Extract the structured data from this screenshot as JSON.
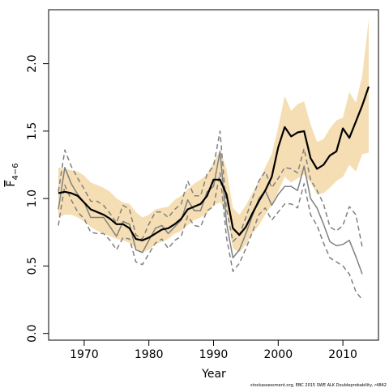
{
  "chart_data": {
    "type": "line",
    "xlabel": "Year",
    "ylabel_main": "F",
    "ylabel_subscript": "4−6",
    "xlim": [
      1964.5,
      2015.5
    ],
    "ylim": [
      -0.05,
      2.4
    ],
    "x_ticks": [
      1970,
      1980,
      1990,
      2000,
      2010
    ],
    "y_ticks": [
      0.0,
      0.5,
      1.0,
      1.5,
      2.0
    ],
    "y_tick_labels": [
      "0.0",
      "0.5",
      "1.0",
      "1.5",
      "2.0"
    ],
    "grid": false,
    "footnote": "stockassessment.org, EBC 2015 SWE ALK Doubleprobability, r4842",
    "colors": {
      "band": "#f5deb3",
      "estimate": "#000000",
      "alt_line": "#808080",
      "alt_ci": "#808080"
    },
    "band": {
      "x": [
        1966,
        1967,
        1968,
        1969,
        1970,
        1971,
        1972,
        1973,
        1974,
        1975,
        1976,
        1977,
        1978,
        1979,
        1980,
        1981,
        1982,
        1983,
        1984,
        1985,
        1986,
        1987,
        1988,
        1989,
        1990,
        1991,
        1992,
        1993,
        1994,
        1995,
        1996,
        1997,
        1998,
        1999,
        2000,
        2001,
        2002,
        2003,
        2004,
        2005,
        2006,
        2007,
        2008,
        2009,
        2010,
        2011,
        2012,
        2013,
        2014
      ],
      "lower": [
        0.86,
        0.88,
        0.88,
        0.86,
        0.83,
        0.79,
        0.76,
        0.74,
        0.72,
        0.7,
        0.69,
        0.67,
        0.63,
        0.6,
        0.62,
        0.66,
        0.68,
        0.7,
        0.74,
        0.76,
        0.8,
        0.84,
        0.86,
        0.89,
        0.95,
        0.97,
        0.91,
        0.63,
        0.6,
        0.66,
        0.74,
        0.8,
        0.88,
        0.95,
        1.05,
        1.16,
        1.12,
        1.15,
        1.18,
        1.12,
        1.03,
        1.04,
        1.08,
        1.13,
        1.16,
        1.25,
        1.2,
        1.33,
        1.34
      ],
      "upper": [
        1.23,
        1.22,
        1.21,
        1.2,
        1.17,
        1.12,
        1.1,
        1.08,
        1.05,
        1.0,
        0.97,
        0.96,
        0.9,
        0.86,
        0.88,
        0.92,
        0.93,
        0.94,
        0.99,
        1.02,
        1.07,
        1.11,
        1.14,
        1.18,
        1.27,
        1.36,
        1.22,
        0.93,
        0.88,
        0.95,
        1.04,
        1.13,
        1.23,
        1.33,
        1.53,
        1.76,
        1.65,
        1.7,
        1.72,
        1.55,
        1.42,
        1.44,
        1.52,
        1.58,
        1.6,
        1.79,
        1.71,
        1.91,
        2.33
      ]
    },
    "series": [
      {
        "x": [
          1966,
          1967,
          1968,
          1969,
          1970,
          1971,
          1972,
          1973,
          1974,
          1975,
          1976,
          1977,
          1978,
          1979,
          1980,
          1981,
          1982,
          1983,
          1984,
          1985,
          1986,
          1987,
          1988,
          1989,
          1990,
          1991,
          1992,
          1993,
          1994,
          1995,
          1996,
          1997,
          1998,
          1999,
          2000,
          2001,
          2002,
          2003,
          2004,
          2005,
          2006,
          2007,
          2008,
          2009,
          2010,
          2011,
          2012,
          2013,
          2014
        ],
        "values": [
          1.04,
          1.05,
          1.04,
          1.02,
          0.97,
          0.92,
          0.9,
          0.88,
          0.85,
          0.81,
          0.81,
          0.78,
          0.7,
          0.69,
          0.71,
          0.74,
          0.77,
          0.78,
          0.81,
          0.85,
          0.92,
          0.94,
          0.96,
          1.02,
          1.14,
          1.14,
          1.03,
          0.78,
          0.73,
          0.79,
          0.89,
          0.98,
          1.06,
          1.16,
          1.38,
          1.53,
          1.46,
          1.49,
          1.5,
          1.3,
          1.22,
          1.25,
          1.32,
          1.35,
          1.52,
          1.45,
          1.57,
          1.69,
          1.83
        ]
      },
      {
        "x": [
          1966,
          1967,
          1968,
          1969,
          1970,
          1971,
          1972,
          1973,
          1974,
          1975,
          1976,
          1977,
          1978,
          1979,
          1980,
          1981,
          1982,
          1983,
          1984,
          1985,
          1986,
          1987,
          1988,
          1989,
          1990,
          1991,
          1992,
          1993,
          1994,
          1995,
          1996,
          1997,
          1998,
          1999,
          2000,
          2001,
          2002,
          2003,
          2004,
          2005,
          2006,
          2007,
          2008,
          2009,
          2010,
          2011,
          2012,
          2013
        ],
        "values": [
          0.92,
          1.23,
          1.11,
          1.03,
          0.97,
          0.86,
          0.86,
          0.86,
          0.79,
          0.72,
          0.83,
          0.81,
          0.62,
          0.6,
          0.69,
          0.78,
          0.8,
          0.74,
          0.79,
          0.84,
          0.99,
          0.91,
          0.91,
          1.05,
          1.09,
          1.35,
          0.82,
          0.56,
          0.62,
          0.74,
          0.87,
          1.0,
          1.06,
          0.95,
          1.03,
          1.09,
          1.09,
          1.06,
          1.24,
          1.0,
          0.93,
          0.81,
          0.68,
          0.65,
          0.66,
          0.69,
          0.57,
          0.44
        ]
      },
      {
        "x": [
          1966,
          1967,
          1968,
          1969,
          1970,
          1971,
          1972,
          1973,
          1974,
          1975,
          1976,
          1977,
          1978,
          1979,
          1980,
          1981,
          1982,
          1983,
          1984,
          1985,
          1986,
          1987,
          1988,
          1989,
          1990,
          1991,
          1992,
          1993,
          1994,
          1995,
          1996,
          1997,
          1998,
          1999,
          2000,
          2001,
          2002,
          2003,
          2004,
          2005,
          2006,
          2007,
          2008,
          2009,
          2010,
          2011,
          2012,
          2013
        ],
        "values": [
          1.05,
          1.36,
          1.24,
          1.15,
          1.07,
          0.98,
          0.98,
          0.95,
          0.89,
          0.82,
          0.95,
          0.92,
          0.73,
          0.7,
          0.81,
          0.9,
          0.9,
          0.86,
          0.92,
          0.96,
          1.13,
          1.02,
          1.02,
          1.18,
          1.24,
          1.5,
          0.92,
          0.68,
          0.73,
          0.86,
          1.0,
          1.13,
          1.2,
          1.08,
          1.15,
          1.23,
          1.22,
          1.19,
          1.37,
          1.14,
          1.06,
          0.96,
          0.79,
          0.76,
          0.8,
          0.94,
          0.88,
          0.64
        ]
      },
      {
        "x": [
          1966,
          1967,
          1968,
          1969,
          1970,
          1971,
          1972,
          1973,
          1974,
          1975,
          1976,
          1977,
          1978,
          1979,
          1980,
          1981,
          1982,
          1983,
          1984,
          1985,
          1986,
          1987,
          1988,
          1989,
          1990,
          1991,
          1992,
          1993,
          1994,
          1995,
          1996,
          1997,
          1998,
          1999,
          2000,
          2001,
          2002,
          2003,
          2004,
          2005,
          2006,
          2007,
          2008,
          2009,
          2010,
          2011,
          2012,
          2013
        ],
        "values": [
          0.8,
          1.1,
          0.99,
          0.9,
          0.85,
          0.75,
          0.74,
          0.74,
          0.69,
          0.62,
          0.71,
          0.7,
          0.53,
          0.51,
          0.59,
          0.67,
          0.7,
          0.63,
          0.69,
          0.72,
          0.87,
          0.8,
          0.79,
          0.91,
          0.94,
          1.19,
          0.71,
          0.46,
          0.52,
          0.63,
          0.75,
          0.88,
          0.93,
          0.84,
          0.9,
          0.96,
          0.96,
          0.93,
          1.11,
          0.88,
          0.8,
          0.67,
          0.56,
          0.53,
          0.5,
          0.44,
          0.31,
          0.25
        ]
      }
    ]
  }
}
